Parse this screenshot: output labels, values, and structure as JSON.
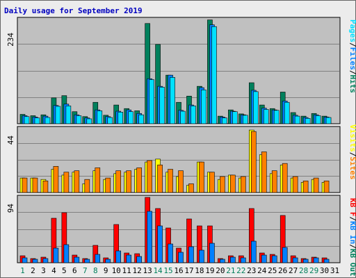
{
  "chart_data": [
    {
      "type": "bar",
      "title": "Daily usage for September 2019",
      "panel": "hits-files-pages",
      "ymax_label": "234",
      "ylim": [
        0,
        234
      ],
      "categories": [
        "1",
        "2",
        "3",
        "4",
        "5",
        "6",
        "7",
        "8",
        "9",
        "10",
        "11",
        "12",
        "13",
        "14",
        "15",
        "16",
        "17",
        "18",
        "19",
        "20",
        "21",
        "22",
        "23",
        "24",
        "25",
        "26",
        "27",
        "28",
        "29",
        "30",
        "31"
      ],
      "legend": [
        "Pages",
        "/",
        "Files",
        "/",
        "Hits"
      ],
      "series": [
        {
          "name": "Hits",
          "color": "#00805c",
          "values": [
            21,
            18,
            20,
            58,
            63,
            27,
            16,
            48,
            19,
            42,
            34,
            29,
            225,
            178,
            109,
            48,
            62,
            84,
            233,
            17,
            31,
            22,
            92,
            42,
            34,
            71,
            25,
            17,
            23,
            17,
            0
          ]
        },
        {
          "name": "Files",
          "color": "#0080ff",
          "values": [
            18,
            15,
            17,
            41,
            44,
            20,
            13,
            31,
            16,
            28,
            31,
            23,
            101,
            84,
            109,
            30,
            42,
            81,
            222,
            15,
            28,
            20,
            75,
            35,
            31,
            51,
            19,
            14,
            20,
            15,
            0
          ]
        },
        {
          "name": "Pages",
          "color": "#00e0ff",
          "values": [
            16,
            13,
            14,
            39,
            40,
            18,
            11,
            29,
            14,
            26,
            27,
            20,
            99,
            82,
            104,
            28,
            40,
            76,
            218,
            13,
            27,
            19,
            72,
            32,
            30,
            48,
            17,
            12,
            18,
            14,
            0
          ]
        }
      ]
    },
    {
      "type": "bar",
      "panel": "visits-sites",
      "ymax_label": "44",
      "ylim": [
        0,
        44
      ],
      "categories": [
        "1",
        "2",
        "3",
        "4",
        "5",
        "6",
        "7",
        "8",
        "9",
        "10",
        "11",
        "12",
        "13",
        "14",
        "15",
        "16",
        "17",
        "18",
        "19",
        "20",
        "21",
        "22",
        "23",
        "24",
        "25",
        "26",
        "27",
        "28",
        "29",
        "30",
        "31"
      ],
      "legend": [
        "Visits",
        "/",
        "Sites"
      ],
      "series": [
        {
          "name": "Visits",
          "color": "#ffff00",
          "values": [
            10,
            10,
            9,
            16,
            12,
            14,
            6,
            15,
            9,
            13,
            14,
            16,
            21,
            23,
            14,
            11,
            5,
            21,
            14,
            9,
            12,
            10,
            43,
            26,
            13,
            19,
            10,
            7,
            9,
            7,
            0
          ]
        },
        {
          "name": "Sites",
          "color": "#ff8000",
          "values": [
            10,
            10,
            8,
            18,
            14,
            15,
            9,
            17,
            10,
            15,
            15,
            17,
            22,
            19,
            16,
            15,
            6,
            21,
            14,
            11,
            12,
            11,
            42,
            28,
            15,
            20,
            11,
            8,
            10,
            8,
            0
          ]
        }
      ]
    },
    {
      "type": "bar",
      "panel": "kbytes",
      "ymax_label": "94",
      "ylim": [
        0,
        94
      ],
      "categories": [
        "1",
        "2",
        "3",
        "4",
        "5",
        "6",
        "7",
        "8",
        "9",
        "10",
        "11",
        "12",
        "13",
        "14",
        "15",
        "16",
        "17",
        "18",
        "19",
        "20",
        "21",
        "22",
        "23",
        "24",
        "25",
        "26",
        "27",
        "28",
        "29",
        "30",
        "31"
      ],
      "legend": [
        "KB F",
        "/",
        "KB In",
        "/",
        "KB Out"
      ],
      "series": [
        {
          "name": "KB F",
          "color": "#ff0000",
          "values": [
            10,
            6,
            8,
            64,
            72,
            11,
            6,
            25,
            7,
            55,
            14,
            13,
            94,
            78,
            50,
            21,
            63,
            53,
            53,
            6,
            10,
            10,
            78,
            14,
            12,
            68,
            10,
            6,
            8,
            7,
            0
          ]
        },
        {
          "name": "KB In",
          "color": "#0080ff",
          "values": [
            7,
            5,
            6,
            21,
            26,
            8,
            5,
            12,
            5,
            17,
            11,
            9,
            74,
            53,
            27,
            15,
            23,
            18,
            28,
            5,
            8,
            7,
            31,
            11,
            10,
            22,
            7,
            5,
            7,
            5,
            0
          ]
        },
        {
          "name": "KB Out",
          "color": "#00805c",
          "values": [
            0,
            0,
            0,
            0,
            0,
            0,
            0,
            0,
            0,
            0,
            0,
            0,
            0,
            0,
            0,
            0,
            0,
            0,
            0,
            0,
            0,
            0,
            0,
            0,
            0,
            0,
            0,
            0,
            0,
            0,
            0
          ]
        }
      ]
    }
  ],
  "colors": {
    "panel_bg": "#c0c0c0",
    "hits": "#00805c",
    "files": "#0080ff",
    "pages": "#00e0ff",
    "visits": "#ffff00",
    "sites": "#ff8000",
    "kbytes": "#ff0000",
    "weekend_day": "#00805c",
    "weekday": "#000000",
    "title": "#0000c0"
  },
  "weekend_days": [
    "1",
    "7",
    "8",
    "14",
    "15",
    "21",
    "22",
    "28",
    "29"
  ]
}
